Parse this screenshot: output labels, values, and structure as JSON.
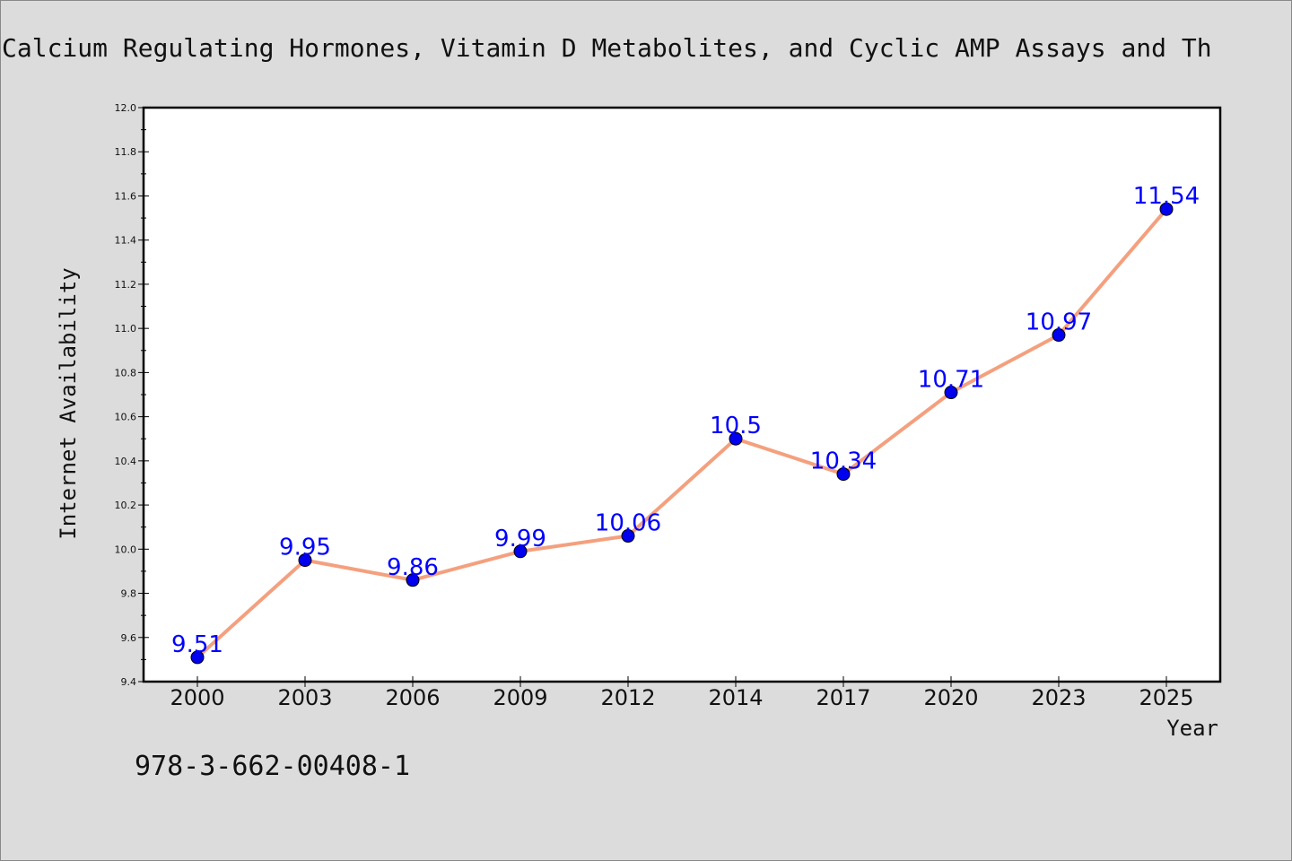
{
  "chart_data": {
    "type": "line",
    "title": "Calcium Regulating Hormones, Vitamin D Metabolites, and Cyclic AMP Assays and Th",
    "xlabel": "Year",
    "ylabel": "Internet Availability",
    "categories": [
      "2000",
      "2003",
      "2006",
      "2009",
      "2012",
      "2014",
      "2017",
      "2020",
      "2023",
      "2025"
    ],
    "series": [
      {
        "values": [
          9.51,
          9.95,
          9.86,
          9.99,
          10.06,
          10.5,
          10.34,
          10.71,
          10.97,
          11.54
        ],
        "labels": [
          "9.51",
          "9.95",
          "9.86",
          "9.99",
          "10.06",
          "10.5",
          "10.34",
          "10.71",
          "10.97",
          "11.54"
        ]
      }
    ],
    "ylim": [
      9.4,
      12.0
    ],
    "yticks": [
      "9.4",
      "9.6",
      "9.8",
      "10.0",
      "10.2",
      "10.4",
      "10.6",
      "10.8",
      "11.0",
      "11.2",
      "11.4",
      "11.6",
      "11.8",
      "12.0"
    ],
    "grid": false,
    "legend": "none",
    "colors": {
      "line": "#f4a07e",
      "marker": "#0000ee",
      "label": "#0000ff",
      "background": "#dcdcdc",
      "plot_background": "#ffffff"
    }
  },
  "footer": {
    "isbn": "978-3-662-00408-1"
  }
}
